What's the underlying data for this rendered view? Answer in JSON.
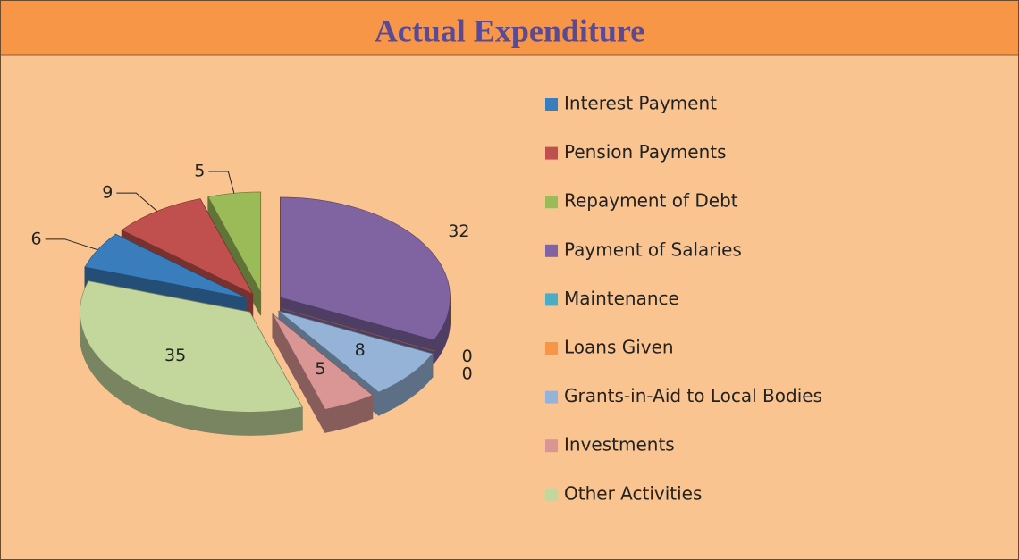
{
  "chart_data": {
    "type": "pie",
    "title": "Actual Expenditure",
    "categories": [
      "Interest Payment",
      "Pension Payments",
      "Repayment of Debt",
      "Payment of Salaries",
      "Maintenance",
      "Loans Given",
      "Grants-in-Aid to Local Bodies",
      "Investments",
      "Other Activities"
    ],
    "values": [
      6,
      9,
      5,
      32,
      0,
      0,
      8,
      5,
      35
    ],
    "colors": [
      "#3a7dbd",
      "#c0504d",
      "#9bbb59",
      "#8064a2",
      "#4bacc6",
      "#f79646",
      "#95b3d7",
      "#d99694",
      "#c3d69b"
    ],
    "legend": "right"
  }
}
